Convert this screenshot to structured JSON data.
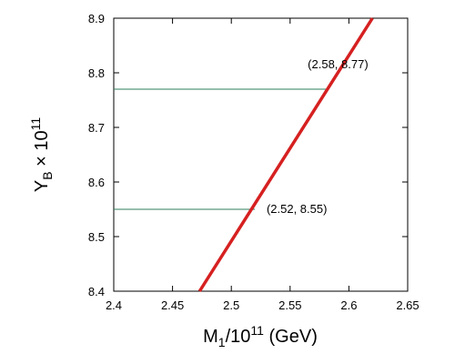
{
  "chart_data": {
    "type": "line",
    "xlabel": {
      "base": "M",
      "sub": "1",
      "mid": "/10",
      "sup": "11",
      "tail": " (GeV)"
    },
    "ylabel": {
      "base": "Y",
      "sub": "B",
      "mid": " × 10",
      "sup": "11"
    },
    "xlim": [
      2.4,
      2.65
    ],
    "ylim": [
      8.4,
      8.9
    ],
    "xticks": [
      {
        "value": 2.4,
        "label": "2.4"
      },
      {
        "value": 2.45,
        "label": "2.45"
      },
      {
        "value": 2.5,
        "label": "2.5"
      },
      {
        "value": 2.55,
        "label": "2.55"
      },
      {
        "value": 2.6,
        "label": "2.6"
      },
      {
        "value": 2.65,
        "label": "2.65"
      }
    ],
    "yticks": [
      {
        "value": 8.4,
        "label": "8.4"
      },
      {
        "value": 8.5,
        "label": "8.5"
      },
      {
        "value": 8.6,
        "label": "8.6"
      },
      {
        "value": 8.7,
        "label": "8.7"
      },
      {
        "value": 8.8,
        "label": "8.8"
      },
      {
        "value": 8.9,
        "label": "8.9"
      }
    ],
    "series": [
      {
        "color": "#d62020",
        "x": [
          2.473,
          2.62
        ],
        "y": [
          8.4,
          8.9
        ]
      }
    ],
    "reference_lines": [
      {
        "y": 8.55,
        "x_end": 2.52,
        "color": "#2e7d5b"
      },
      {
        "y": 8.77,
        "x_end": 2.583,
        "color": "#2e7d5b"
      }
    ],
    "annotations": [
      {
        "text": "(2.52, 8.55)",
        "x": 2.53,
        "y": 8.55
      },
      {
        "text": "(2.58, 8.77)",
        "x": 2.565,
        "y": 8.815
      }
    ],
    "grid": false
  }
}
